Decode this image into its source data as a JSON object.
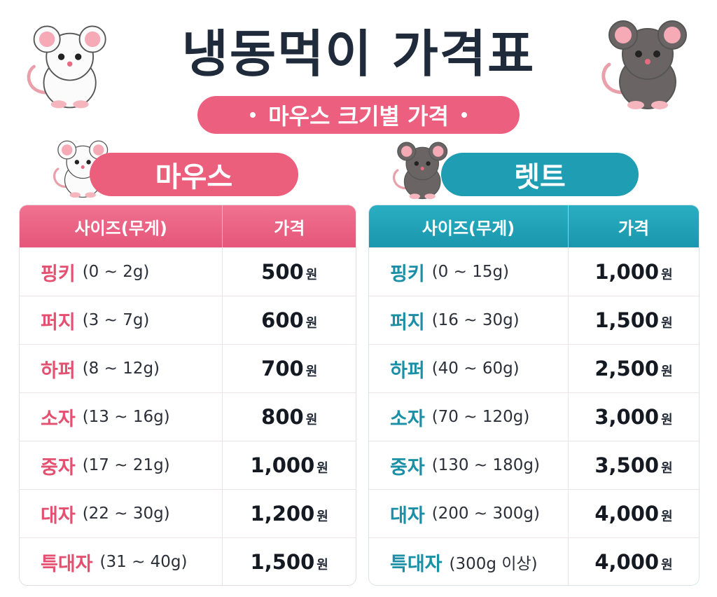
{
  "header": {
    "title": "냉동먹이 가격표",
    "subtitle": "마우스 크기별 가격"
  },
  "tables": [
    {
      "label": "마우스",
      "columns": [
        "사이즈(무게)",
        "가격"
      ],
      "rows": [
        {
          "size": "핑키",
          "range": "(0 ~ 2g)",
          "price": "500",
          "unit": "원"
        },
        {
          "size": "퍼지",
          "range": "(3 ~ 7g)",
          "price": "600",
          "unit": "원"
        },
        {
          "size": "하퍼",
          "range": "(8 ~ 12g)",
          "price": "700",
          "unit": "원"
        },
        {
          "size": "소자",
          "range": "(13 ~ 16g)",
          "price": "800",
          "unit": "원"
        },
        {
          "size": "중자",
          "range": "(17 ~ 21g)",
          "price": "1,000",
          "unit": "원"
        },
        {
          "size": "대자",
          "range": "(22 ~ 30g)",
          "price": "1,200",
          "unit": "원"
        },
        {
          "size": "특대자",
          "range": "(31 ~ 40g)",
          "price": "1,500",
          "unit": "원"
        }
      ]
    },
    {
      "label": "렛트",
      "columns": [
        "사이즈(무게)",
        "가격"
      ],
      "rows": [
        {
          "size": "핑키",
          "range": "(0 ~ 15g)",
          "price": "1,000",
          "unit": "원"
        },
        {
          "size": "퍼지",
          "range": "(16 ~ 30g)",
          "price": "1,500",
          "unit": "원"
        },
        {
          "size": "하퍼",
          "range": "(40 ~ 60g)",
          "price": "2,500",
          "unit": "원"
        },
        {
          "size": "소자",
          "range": "(70 ~ 120g)",
          "price": "3,000",
          "unit": "원"
        },
        {
          "size": "중자",
          "range": "(130 ~ 180g)",
          "price": "3,500",
          "unit": "원"
        },
        {
          "size": "대자",
          "range": "(200 ~ 300g)",
          "price": "4,000",
          "unit": "원"
        },
        {
          "size": "특대자",
          "range": "(300g 이상)",
          "price": "4,000",
          "unit": "원"
        }
      ]
    }
  ]
}
